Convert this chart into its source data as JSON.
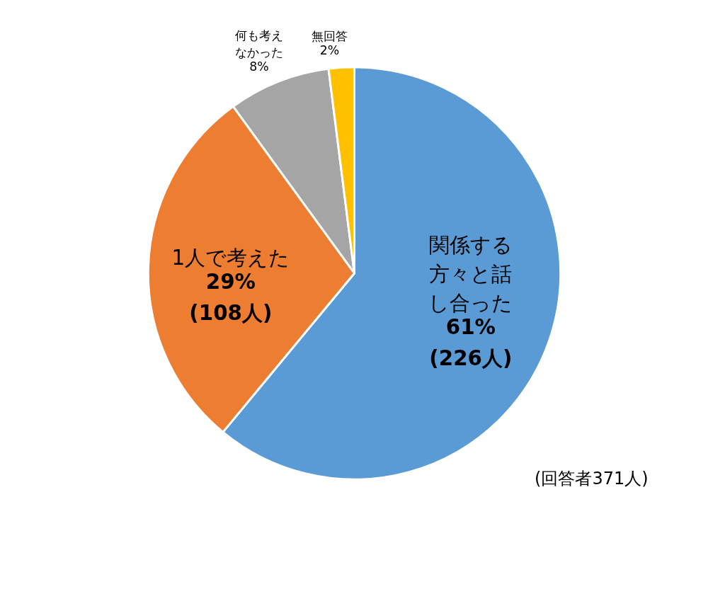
{
  "chart_data": {
    "type": "pie",
    "categories": [
      "関係する方々と話し合った",
      "1人で考えた",
      "何も考えなかった",
      "無回答"
    ],
    "values": [
      61,
      29,
      8,
      2
    ],
    "colors": [
      "#5b9bd5",
      "#ed7d31",
      "#a5a5a5",
      "#ffc000"
    ],
    "value_labels": [
      "61%\n(226人)",
      "29%\n(108人)",
      "8%",
      "2%"
    ],
    "annotations": [
      "(回答者371人)"
    ]
  }
}
